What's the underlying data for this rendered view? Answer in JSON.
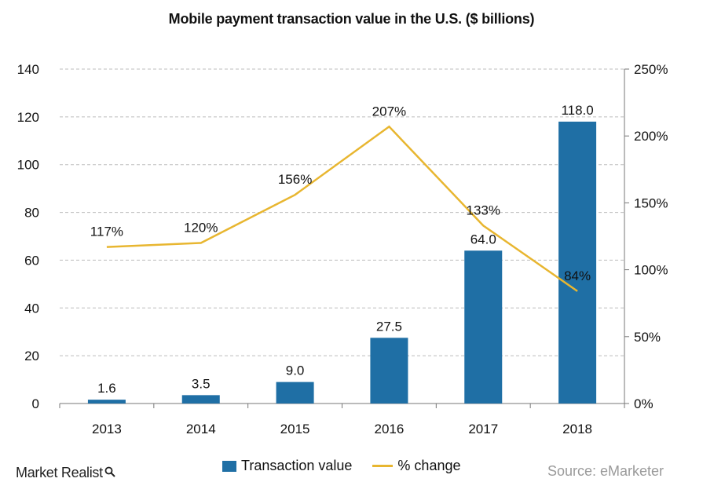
{
  "chart_data": {
    "type": "bar",
    "title": "Mobile payment transaction value in the U.S. ($ billions)",
    "categories": [
      "2013",
      "2014",
      "2015",
      "2016",
      "2017",
      "2018"
    ],
    "series": [
      {
        "name": "Transaction value",
        "type": "bar",
        "axis": "left",
        "values": [
          1.6,
          3.5,
          9.0,
          27.5,
          64.0,
          118.0
        ],
        "labels": [
          "1.6",
          "3.5",
          "9.0",
          "27.5",
          "64.0",
          "118.0"
        ],
        "color": "#1f6fa5"
      },
      {
        "name": "% change",
        "type": "line",
        "axis": "right",
        "values": [
          117,
          120,
          156,
          207,
          133,
          84
        ],
        "labels": [
          "117%",
          "120%",
          "156%",
          "207%",
          "133%",
          "84%"
        ],
        "color": "#e8b630"
      }
    ],
    "ylim": [
      0,
      140
    ],
    "y_ticks": [
      "0",
      "20",
      "40",
      "60",
      "80",
      "100",
      "120",
      "140"
    ],
    "y2lim": [
      0,
      250
    ],
    "y2_ticks": [
      "0%",
      "50%",
      "100%",
      "150%",
      "200%",
      "250%"
    ],
    "grid": true,
    "legend_position": "bottom"
  },
  "footer": {
    "brand": "Market Realist",
    "source": "Source: eMarketer"
  }
}
